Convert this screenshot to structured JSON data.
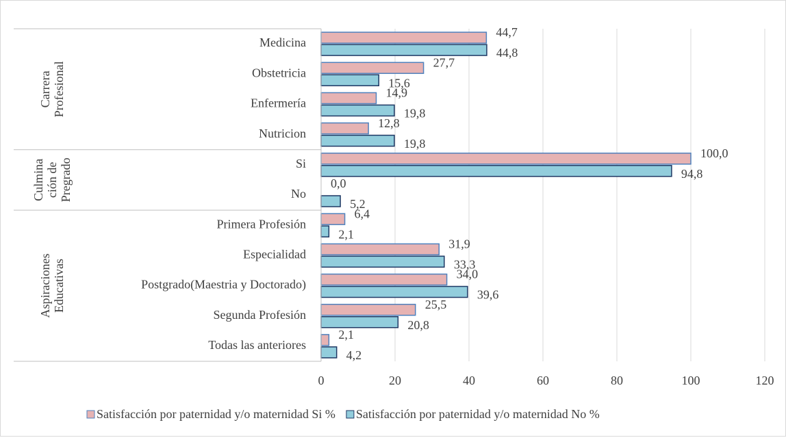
{
  "chart_data": {
    "type": "bar",
    "orientation": "horizontal",
    "groups": [
      {
        "label": [
          "Carrera",
          "Profesional"
        ],
        "categories": [
          "Medicina",
          "Obstetricia",
          "Enfermería",
          "Nutricion"
        ]
      },
      {
        "label": [
          "Culmina",
          "ción de",
          "Pregrado"
        ],
        "categories": [
          "Si",
          "No"
        ]
      },
      {
        "label": [
          "Aspiraciones",
          "Educativas"
        ],
        "categories": [
          "Primera Profesión",
          "Especialidad",
          "Postgrado(Maestria y Doctorado)",
          "Segunda Profesión",
          "Todas las anteriores"
        ]
      }
    ],
    "series": [
      {
        "name": "Satisfacción por paternidad y/o maternidad Si %",
        "color": "#e6b3b3",
        "stroke": "#4f81bd",
        "values": [
          44.7,
          27.7,
          14.9,
          12.8,
          100.0,
          0.0,
          6.4,
          31.9,
          34.0,
          25.5,
          2.1
        ],
        "value_labels": [
          "44,7",
          "27,7",
          "14,9",
          "12,8",
          "100,0",
          "0,0",
          "6,4",
          "31,9",
          "34,0",
          "25,5",
          "2,1"
        ]
      },
      {
        "name": "Satisfacción por paternidad y/o maternidad No %",
        "color": "#92cddc",
        "stroke": "#1f3864",
        "values": [
          44.8,
          15.6,
          19.8,
          19.8,
          94.8,
          5.2,
          2.1,
          33.3,
          39.6,
          20.8,
          4.2
        ],
        "value_labels": [
          "44,8",
          "15,6",
          "19,8",
          "19,8",
          "94,8",
          "5,2",
          "2,1",
          "33,3",
          "39,6",
          "20,8",
          "4,2"
        ]
      }
    ],
    "xlim": [
      0,
      120
    ],
    "xticks": [
      0,
      20,
      40,
      60,
      80,
      100,
      120
    ],
    "grid": true,
    "legend": "bottom"
  }
}
